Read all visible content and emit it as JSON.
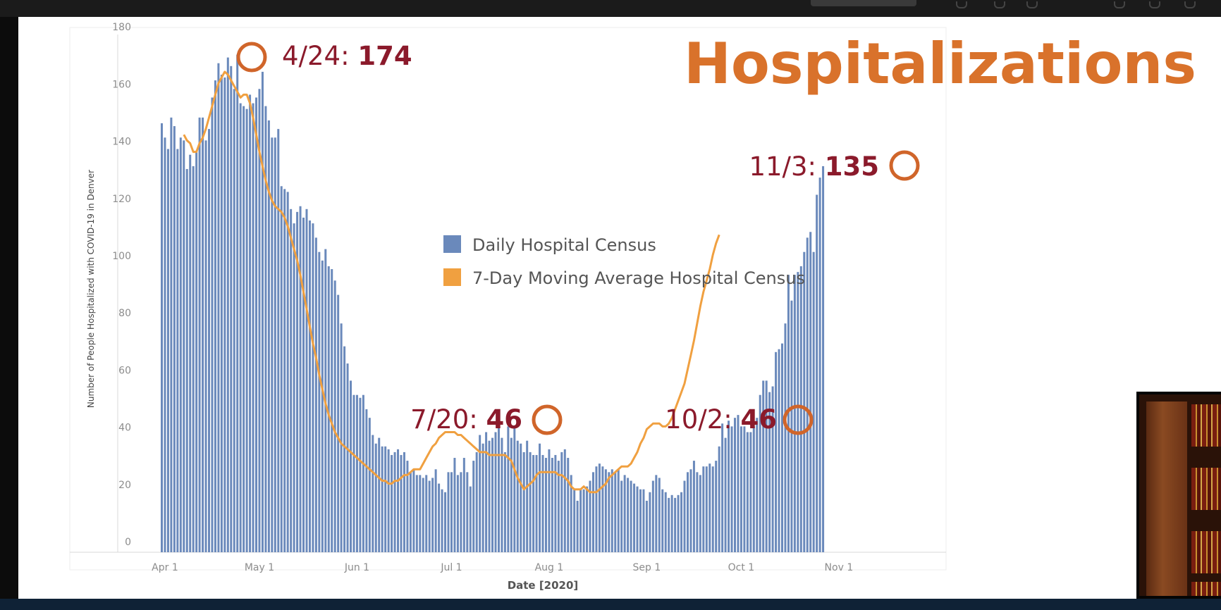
{
  "slide": {
    "title": "Hospitalizations"
  },
  "colors": {
    "bar": "#6a89bb",
    "line": "#f0a040",
    "annotation": "#8b1a2b",
    "title": "#d9722b",
    "circle": "#d0652a"
  },
  "chart_data": {
    "type": "bar",
    "xlabel": "Date [2020]",
    "ylabel": "Number of People Hospitalized with COVID-19 in Denver",
    "ylim": [
      0,
      180
    ],
    "yticks": [
      0,
      20,
      40,
      60,
      80,
      100,
      120,
      140,
      160,
      180
    ],
    "xticks": [
      "Apr 1",
      "May 1",
      "Jun 1",
      "Jul 1",
      "Aug 1",
      "Sep 1",
      "Oct 1",
      "Nov 1"
    ],
    "start_date": "Mar 31",
    "grid": false,
    "legend_position": "center",
    "series": [
      {
        "name": "Daily Hospital Census",
        "kind": "bar",
        "values": [
          150,
          145,
          141,
          152,
          149,
          141,
          145,
          144,
          134,
          139,
          135,
          140,
          152,
          152,
          144,
          148,
          159,
          165,
          171,
          167,
          166,
          173,
          170,
          162,
          174,
          157,
          156,
          155,
          160,
          157,
          159,
          162,
          168,
          156,
          151,
          145,
          145,
          148,
          128,
          127,
          126,
          120,
          115,
          119,
          121,
          117,
          120,
          116,
          115,
          110,
          105,
          102,
          106,
          100,
          99,
          95,
          90,
          80,
          72,
          66,
          60,
          55,
          55,
          54,
          55,
          50,
          47,
          41,
          38,
          40,
          37,
          37,
          36,
          34,
          35,
          36,
          34,
          35,
          32,
          28,
          29,
          27,
          27,
          26,
          27,
          25,
          26,
          29,
          24,
          22,
          21,
          28,
          28,
          33,
          27,
          28,
          33,
          28,
          23,
          32,
          35,
          41,
          38,
          42,
          39,
          40,
          42,
          46,
          40,
          35,
          44,
          40,
          44,
          39,
          38,
          35,
          39,
          35,
          34,
          34,
          38,
          34,
          33,
          36,
          33,
          34,
          32,
          35,
          36,
          33,
          27,
          22,
          18,
          22,
          22,
          23,
          25,
          28,
          30,
          31,
          30,
          29,
          28,
          29,
          28,
          29,
          25,
          27,
          26,
          25,
          24,
          23,
          22,
          22,
          18,
          21,
          25,
          27,
          26,
          22,
          21,
          19,
          20,
          19,
          20,
          21,
          25,
          28,
          29,
          32,
          28,
          27,
          30,
          30,
          31,
          30,
          32,
          37,
          45,
          40,
          46,
          44,
          47,
          48,
          44,
          44,
          42,
          42,
          44,
          47,
          55,
          60,
          60,
          56,
          58,
          70,
          71,
          73,
          80,
          97,
          88,
          97,
          98,
          100,
          105,
          110,
          112,
          105,
          125,
          131,
          135
        ]
      },
      {
        "name": "7-Day Moving Average Hospital Census",
        "kind": "line",
        "start_index": 7,
        "values": [
          146,
          144,
          143,
          140,
          140,
          143,
          145,
          148,
          152,
          156,
          160,
          164,
          166,
          168,
          167,
          165,
          163,
          161,
          159,
          160,
          160,
          157,
          152,
          146,
          140,
          135,
          130,
          126,
          123,
          121,
          120,
          119,
          117,
          114,
          110,
          106,
          102,
          97,
          91,
          85,
          79,
          73,
          68,
          62,
          57,
          52,
          48,
          45,
          42,
          40,
          38,
          37,
          36,
          35,
          34,
          33,
          32,
          31,
          30,
          29,
          28,
          27,
          26,
          25,
          25,
          24,
          24,
          25,
          25,
          26,
          27,
          27,
          28,
          29,
          29,
          29,
          31,
          33,
          35,
          37,
          38,
          40,
          41,
          42,
          42,
          42,
          42,
          41,
          41,
          40,
          39,
          38,
          37,
          36,
          35,
          35,
          35,
          34,
          34,
          34,
          34,
          34,
          34,
          33,
          32,
          29,
          26,
          24,
          22,
          23,
          24,
          25,
          27,
          28,
          28,
          28,
          28,
          28,
          28,
          27,
          27,
          26,
          25,
          23,
          22,
          22,
          22,
          23,
          22,
          21,
          21,
          21,
          22,
          23,
          24,
          26,
          27,
          28,
          29,
          30,
          30,
          30,
          31,
          33,
          35,
          38,
          40,
          43,
          44,
          45,
          45,
          45,
          44,
          44,
          45,
          47,
          50,
          53,
          56,
          59,
          64,
          69,
          74,
          80,
          86,
          91,
          95,
          99,
          104,
          108,
          111
        ]
      }
    ],
    "annotations": [
      {
        "label": "4/24: ",
        "value": "174"
      },
      {
        "label": "7/20: ",
        "value": "46"
      },
      {
        "label": "10/2: ",
        "value": "46"
      },
      {
        "label": "11/3: ",
        "value": "135"
      }
    ]
  }
}
